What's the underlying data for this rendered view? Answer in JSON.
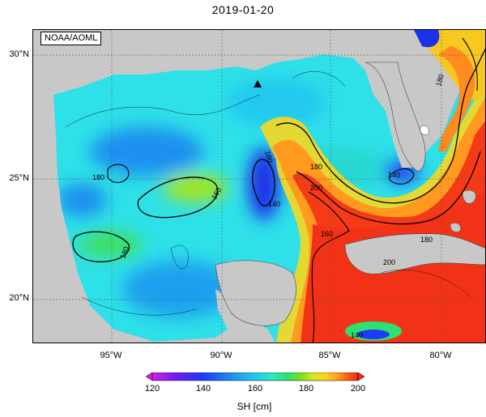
{
  "title": "2019-01-20",
  "source": "NOAA/AOML",
  "axes": {
    "lat_labels": [
      "30°N",
      "25°N",
      "20°N"
    ],
    "lon_labels": [
      "95°W",
      "90°W",
      "85°W",
      "80°W"
    ]
  },
  "colorbar": {
    "label": "SH [cm]",
    "ticks": [
      "120",
      "140",
      "160",
      "180",
      "200"
    ],
    "colors": [
      "#d21ee6",
      "#6a1cf0",
      "#1a3cf5",
      "#1e8cf0",
      "#21c8f0",
      "#2ee8c0",
      "#2ee070",
      "#7ae020",
      "#d6e81a",
      "#ffd21e",
      "#ffa01e",
      "#ff5a14",
      "#f02814"
    ]
  },
  "map": {
    "land_color": "#c8c8c8",
    "marker": "triangle",
    "contour_labels": [
      "160",
      "180",
      "140",
      "180",
      "200",
      "140",
      "180",
      "160",
      "180",
      "160",
      "140",
      "200",
      "180"
    ]
  }
}
